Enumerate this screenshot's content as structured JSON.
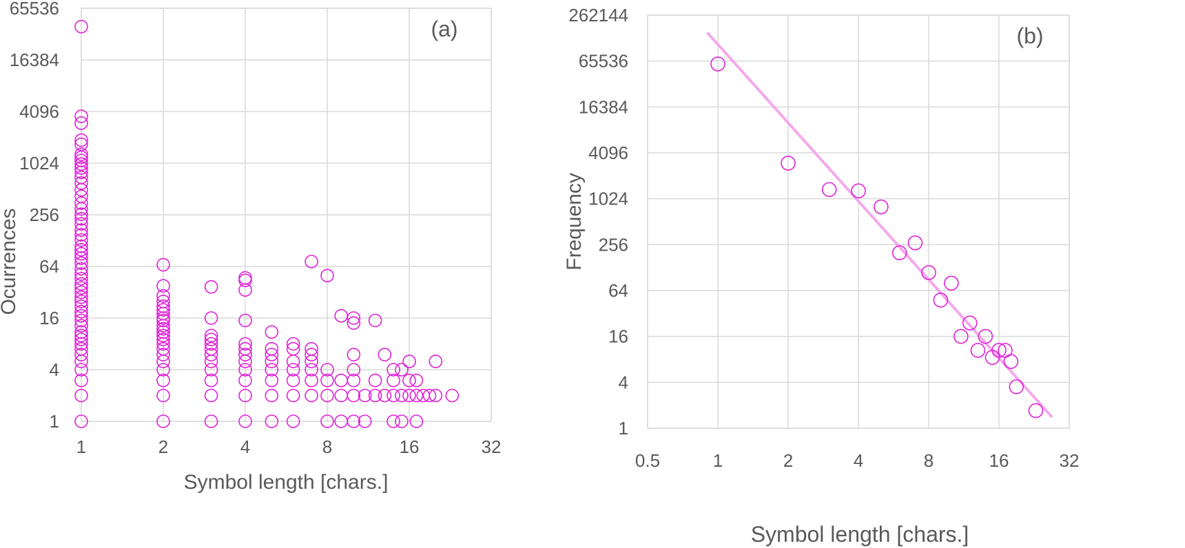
{
  "chart_data": [
    {
      "type": "scatter",
      "panel_label": "(a)",
      "xlabel": "Symbol length [chars.]",
      "ylabel": "Ocurrences",
      "x_scale": "log2",
      "y_scale": "log2",
      "xlim": [
        1,
        32
      ],
      "ylim": [
        1,
        65536
      ],
      "x_ticks": [
        "1",
        "2",
        "4",
        "8",
        "16",
        "32"
      ],
      "y_ticks": [
        "1",
        "4",
        "16",
        "64",
        "256",
        "1024",
        "4096",
        "16384",
        "65536"
      ],
      "grid": true,
      "marker_color": "#e020d8",
      "points": [
        [
          1,
          40000
        ],
        [
          1,
          3600
        ],
        [
          1,
          3000
        ],
        [
          1,
          1900
        ],
        [
          1,
          1700
        ],
        [
          1,
          1300
        ],
        [
          1,
          1200
        ],
        [
          1,
          1100
        ],
        [
          1,
          1000
        ],
        [
          1,
          900
        ],
        [
          1,
          800
        ],
        [
          1,
          700
        ],
        [
          1,
          600
        ],
        [
          1,
          500
        ],
        [
          1,
          420
        ],
        [
          1,
          350
        ],
        [
          1,
          300
        ],
        [
          1,
          260
        ],
        [
          1,
          230
        ],
        [
          1,
          200
        ],
        [
          1,
          170
        ],
        [
          1,
          150
        ],
        [
          1,
          130
        ],
        [
          1,
          110
        ],
        [
          1,
          100
        ],
        [
          1,
          90
        ],
        [
          1,
          80
        ],
        [
          1,
          70
        ],
        [
          1,
          60
        ],
        [
          1,
          52
        ],
        [
          1,
          46
        ],
        [
          1,
          40
        ],
        [
          1,
          36
        ],
        [
          1,
          32
        ],
        [
          1,
          28
        ],
        [
          1,
          25
        ],
        [
          1,
          22
        ],
        [
          1,
          19
        ],
        [
          1,
          17
        ],
        [
          1,
          15
        ],
        [
          1,
          13
        ],
        [
          1,
          11
        ],
        [
          1,
          10
        ],
        [
          1,
          9
        ],
        [
          1,
          8
        ],
        [
          1,
          7
        ],
        [
          1,
          6
        ],
        [
          1,
          5
        ],
        [
          1,
          4
        ],
        [
          1,
          3
        ],
        [
          1,
          2
        ],
        [
          1,
          1
        ],
        [
          2,
          67
        ],
        [
          2,
          38
        ],
        [
          2,
          29
        ],
        [
          2,
          25
        ],
        [
          2,
          22
        ],
        [
          2,
          20
        ],
        [
          2,
          18
        ],
        [
          2,
          16
        ],
        [
          2,
          15
        ],
        [
          2,
          13
        ],
        [
          2,
          12
        ],
        [
          2,
          11
        ],
        [
          2,
          10
        ],
        [
          2,
          9
        ],
        [
          2,
          8
        ],
        [
          2,
          7
        ],
        [
          2,
          6
        ],
        [
          2,
          5
        ],
        [
          2,
          4
        ],
        [
          2,
          3
        ],
        [
          2,
          2
        ],
        [
          2,
          1
        ],
        [
          3,
          37
        ],
        [
          3,
          16
        ],
        [
          3,
          10
        ],
        [
          3,
          9
        ],
        [
          3,
          8
        ],
        [
          3,
          7
        ],
        [
          3,
          6
        ],
        [
          3,
          5
        ],
        [
          3,
          4
        ],
        [
          3,
          3
        ],
        [
          3,
          2
        ],
        [
          3,
          1
        ],
        [
          4,
          47
        ],
        [
          4,
          44
        ],
        [
          4,
          34
        ],
        [
          4,
          15
        ],
        [
          4,
          8
        ],
        [
          4,
          7
        ],
        [
          4,
          6
        ],
        [
          4,
          5
        ],
        [
          4,
          4
        ],
        [
          4,
          3
        ],
        [
          4,
          2
        ],
        [
          4,
          1
        ],
        [
          5,
          11
        ],
        [
          5,
          7
        ],
        [
          5,
          6
        ],
        [
          5,
          5
        ],
        [
          5,
          4
        ],
        [
          5,
          3
        ],
        [
          5,
          2
        ],
        [
          5,
          1
        ],
        [
          6,
          8
        ],
        [
          6,
          7
        ],
        [
          6,
          5
        ],
        [
          6,
          4
        ],
        [
          6,
          3
        ],
        [
          6,
          2
        ],
        [
          6,
          1
        ],
        [
          7,
          73
        ],
        [
          7,
          7
        ],
        [
          7,
          6
        ],
        [
          7,
          5
        ],
        [
          7,
          4
        ],
        [
          7,
          3
        ],
        [
          7,
          2
        ],
        [
          8,
          50
        ],
        [
          8,
          4
        ],
        [
          8,
          3
        ],
        [
          8,
          2
        ],
        [
          8,
          1
        ],
        [
          9,
          17
        ],
        [
          9,
          3
        ],
        [
          9,
          2
        ],
        [
          9,
          1
        ],
        [
          10,
          16
        ],
        [
          10,
          14
        ],
        [
          10,
          6
        ],
        [
          10,
          4
        ],
        [
          10,
          3
        ],
        [
          10,
          2
        ],
        [
          10,
          1
        ],
        [
          11,
          2
        ],
        [
          11,
          1
        ],
        [
          12,
          15
        ],
        [
          12,
          3
        ],
        [
          12,
          2
        ],
        [
          13,
          6
        ],
        [
          13,
          2
        ],
        [
          14,
          4
        ],
        [
          14,
          3
        ],
        [
          14,
          2
        ],
        [
          14,
          1
        ],
        [
          15,
          4
        ],
        [
          15,
          2
        ],
        [
          15,
          1
        ],
        [
          16,
          5
        ],
        [
          16,
          3
        ],
        [
          16,
          2
        ],
        [
          17,
          3
        ],
        [
          17,
          2
        ],
        [
          17,
          1
        ],
        [
          18,
          2
        ],
        [
          19,
          2
        ],
        [
          20,
          5
        ],
        [
          20,
          2
        ],
        [
          23,
          2
        ]
      ]
    },
    {
      "type": "scatter",
      "panel_label": "(b)",
      "xlabel": "Symbol length [chars.]",
      "ylabel": "Frequency",
      "x_scale": "log2",
      "y_scale": "log2",
      "xlim": [
        0.5,
        32
      ],
      "ylim": [
        1,
        262144
      ],
      "x_ticks": [
        "0.5",
        "1",
        "2",
        "4",
        "8",
        "16",
        "32"
      ],
      "y_ticks": [
        "1",
        "4",
        "16",
        "64",
        "256",
        "1024",
        "4096",
        "16384",
        "65536",
        "262144"
      ],
      "grid": true,
      "marker_color": "#e020d8",
      "trendline_color": "#f4a8ec",
      "trendline": [
        [
          0.9,
          155000
        ],
        [
          27,
          1.4
        ]
      ],
      "points": [
        [
          1,
          60000
        ],
        [
          2,
          3000
        ],
        [
          3,
          1350
        ],
        [
          4,
          1300
        ],
        [
          5,
          800
        ],
        [
          6,
          200
        ],
        [
          7,
          270
        ],
        [
          8,
          110
        ],
        [
          9,
          48
        ],
        [
          10,
          80
        ],
        [
          11,
          16
        ],
        [
          12,
          24
        ],
        [
          13,
          10.5
        ],
        [
          14,
          16
        ],
        [
          15,
          8.5
        ],
        [
          16,
          10.5
        ],
        [
          17,
          10.5
        ],
        [
          18,
          7.5
        ],
        [
          19,
          3.5
        ],
        [
          23,
          1.7
        ]
      ]
    }
  ]
}
